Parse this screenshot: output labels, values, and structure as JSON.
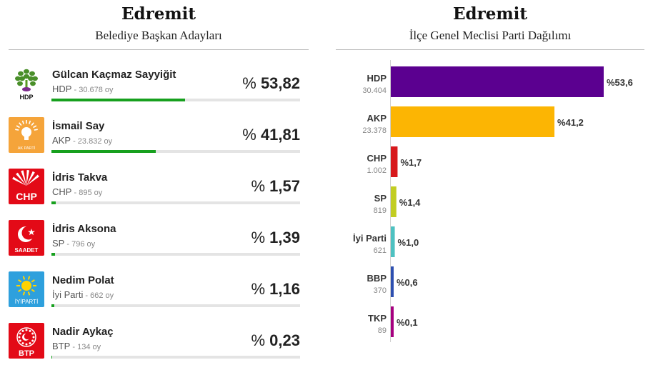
{
  "mayor": {
    "title": "Edremit",
    "subtitle": "Belediye Başkan Adayları",
    "candidates": [
      {
        "name": "Gülcan Kaçmaz Sayyiğit",
        "party": "HDP",
        "votes": "30.678 oy",
        "pct_symbol": "%",
        "pct": "53,82",
        "share": 53.82,
        "logo": "hdp-logo",
        "logo_text": "HDP",
        "color": "#17a01e"
      },
      {
        "name": "İsmail Say",
        "party": "AKP",
        "votes": "23.832 oy",
        "pct_symbol": "%",
        "pct": "41,81",
        "share": 41.81,
        "logo": "akp-logo",
        "logo_text": "AK PARTİ",
        "color": "#17a01e"
      },
      {
        "name": "İdris Takva",
        "party": "CHP",
        "votes": "895 oy",
        "pct_symbol": "%",
        "pct": "1,57",
        "share": 1.57,
        "logo": "chp-logo",
        "logo_text": "CHP",
        "color": "#17a01e"
      },
      {
        "name": "İdris Aksona",
        "party": "SP",
        "votes": "796 oy",
        "pct_symbol": "%",
        "pct": "1,39",
        "share": 1.39,
        "logo": "saadet-logo",
        "logo_text": "SAADET",
        "color": "#17a01e"
      },
      {
        "name": "Nedim Polat",
        "party": "İyi Parti",
        "votes": "662 oy",
        "pct_symbol": "%",
        "pct": "1,16",
        "share": 1.16,
        "logo": "iyi-parti-logo",
        "logo_text": "İYİPARTİ",
        "color": "#17a01e"
      },
      {
        "name": "Nadir Aykaç",
        "party": "BTP",
        "votes": "134 oy",
        "pct_symbol": "%",
        "pct": "0,23",
        "share": 0.23,
        "logo": "btp-logo",
        "logo_text": "BTP",
        "color": "#17a01e"
      }
    ]
  },
  "assembly": {
    "title": "Edremit",
    "subtitle": "İlçe Genel Meclisi Parti Dağılımı"
  },
  "chart_data": {
    "type": "bar",
    "orientation": "horizontal",
    "categories": [
      "HDP",
      "AKP",
      "CHP",
      "SP",
      "İyi Parti",
      "BBP",
      "TKP"
    ],
    "vote_labels": [
      "30.404",
      "23.378",
      "1.002",
      "819",
      "621",
      "370",
      "89"
    ],
    "values": [
      53.6,
      41.2,
      1.7,
      1.4,
      1.0,
      0.6,
      0.1
    ],
    "value_labels": [
      "%53,6",
      "%41,2",
      "%1,7",
      "%1,4",
      "%1,0",
      "%0,6",
      "%0,1"
    ],
    "colors": [
      "#5b0090",
      "#fcb503",
      "#d7191c",
      "#c2cd22",
      "#4ec1c1",
      "#2d4fb0",
      "#a6007f"
    ],
    "title": "Edremit",
    "subtitle": "İlçe Genel Meclisi Parti Dağılımı",
    "xlabel": "",
    "ylabel": "",
    "xlim": [
      0,
      53.6
    ],
    "grid": false,
    "legend": "none"
  }
}
